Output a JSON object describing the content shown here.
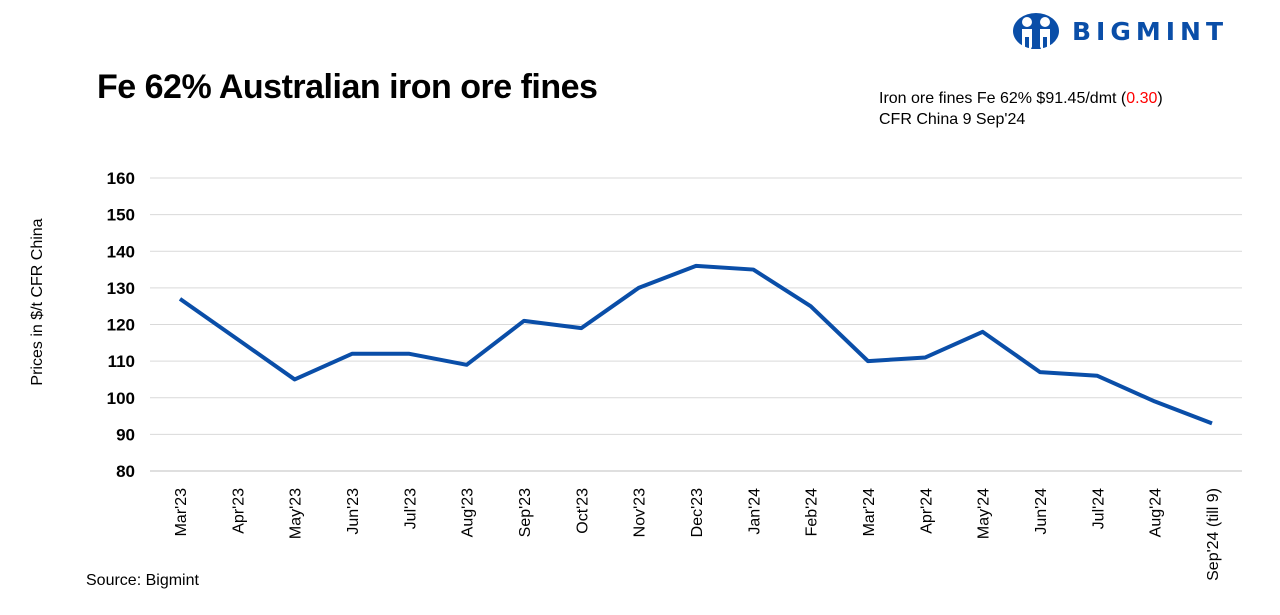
{
  "title": "Fe 62% Australian iron ore fines",
  "info": {
    "line1_prefix": "Iron ore fines Fe 62% $91.45/dmt (",
    "change": "0.30",
    "line1_suffix": ")",
    "line2": "CFR China 9 Sep'24"
  },
  "logo": {
    "text": "BIGMINT",
    "color": "#0a4ea8"
  },
  "source": "Source: Bigmint",
  "chart_data": {
    "type": "line",
    "title": "Fe 62% Australian iron ore fines",
    "xlabel": "",
    "ylabel": "Prices in $/t CFR China",
    "ylim": [
      80,
      160
    ],
    "yticks": [
      80,
      90,
      100,
      110,
      120,
      130,
      140,
      150,
      160
    ],
    "grid": true,
    "categories": [
      "Mar'23",
      "Apr'23",
      "May'23",
      "Jun'23",
      "Jul'23",
      "Aug'23",
      "Sep'23",
      "Oct'23",
      "Nov'23",
      "Dec'23",
      "Jan'24",
      "Feb'24",
      "Mar'24",
      "Apr'24",
      "May'24",
      "Jun'24",
      "Jul'24",
      "Aug'24",
      "Sep'24 (till 9)"
    ],
    "series": [
      {
        "name": "Fe 62% Australian iron ore fines",
        "color": "#0a4ea8",
        "values": [
          127,
          116,
          105,
          112,
          112,
          109,
          121,
          119,
          130,
          136,
          135,
          125,
          110,
          111,
          118,
          107,
          106,
          99,
          93
        ]
      }
    ]
  }
}
